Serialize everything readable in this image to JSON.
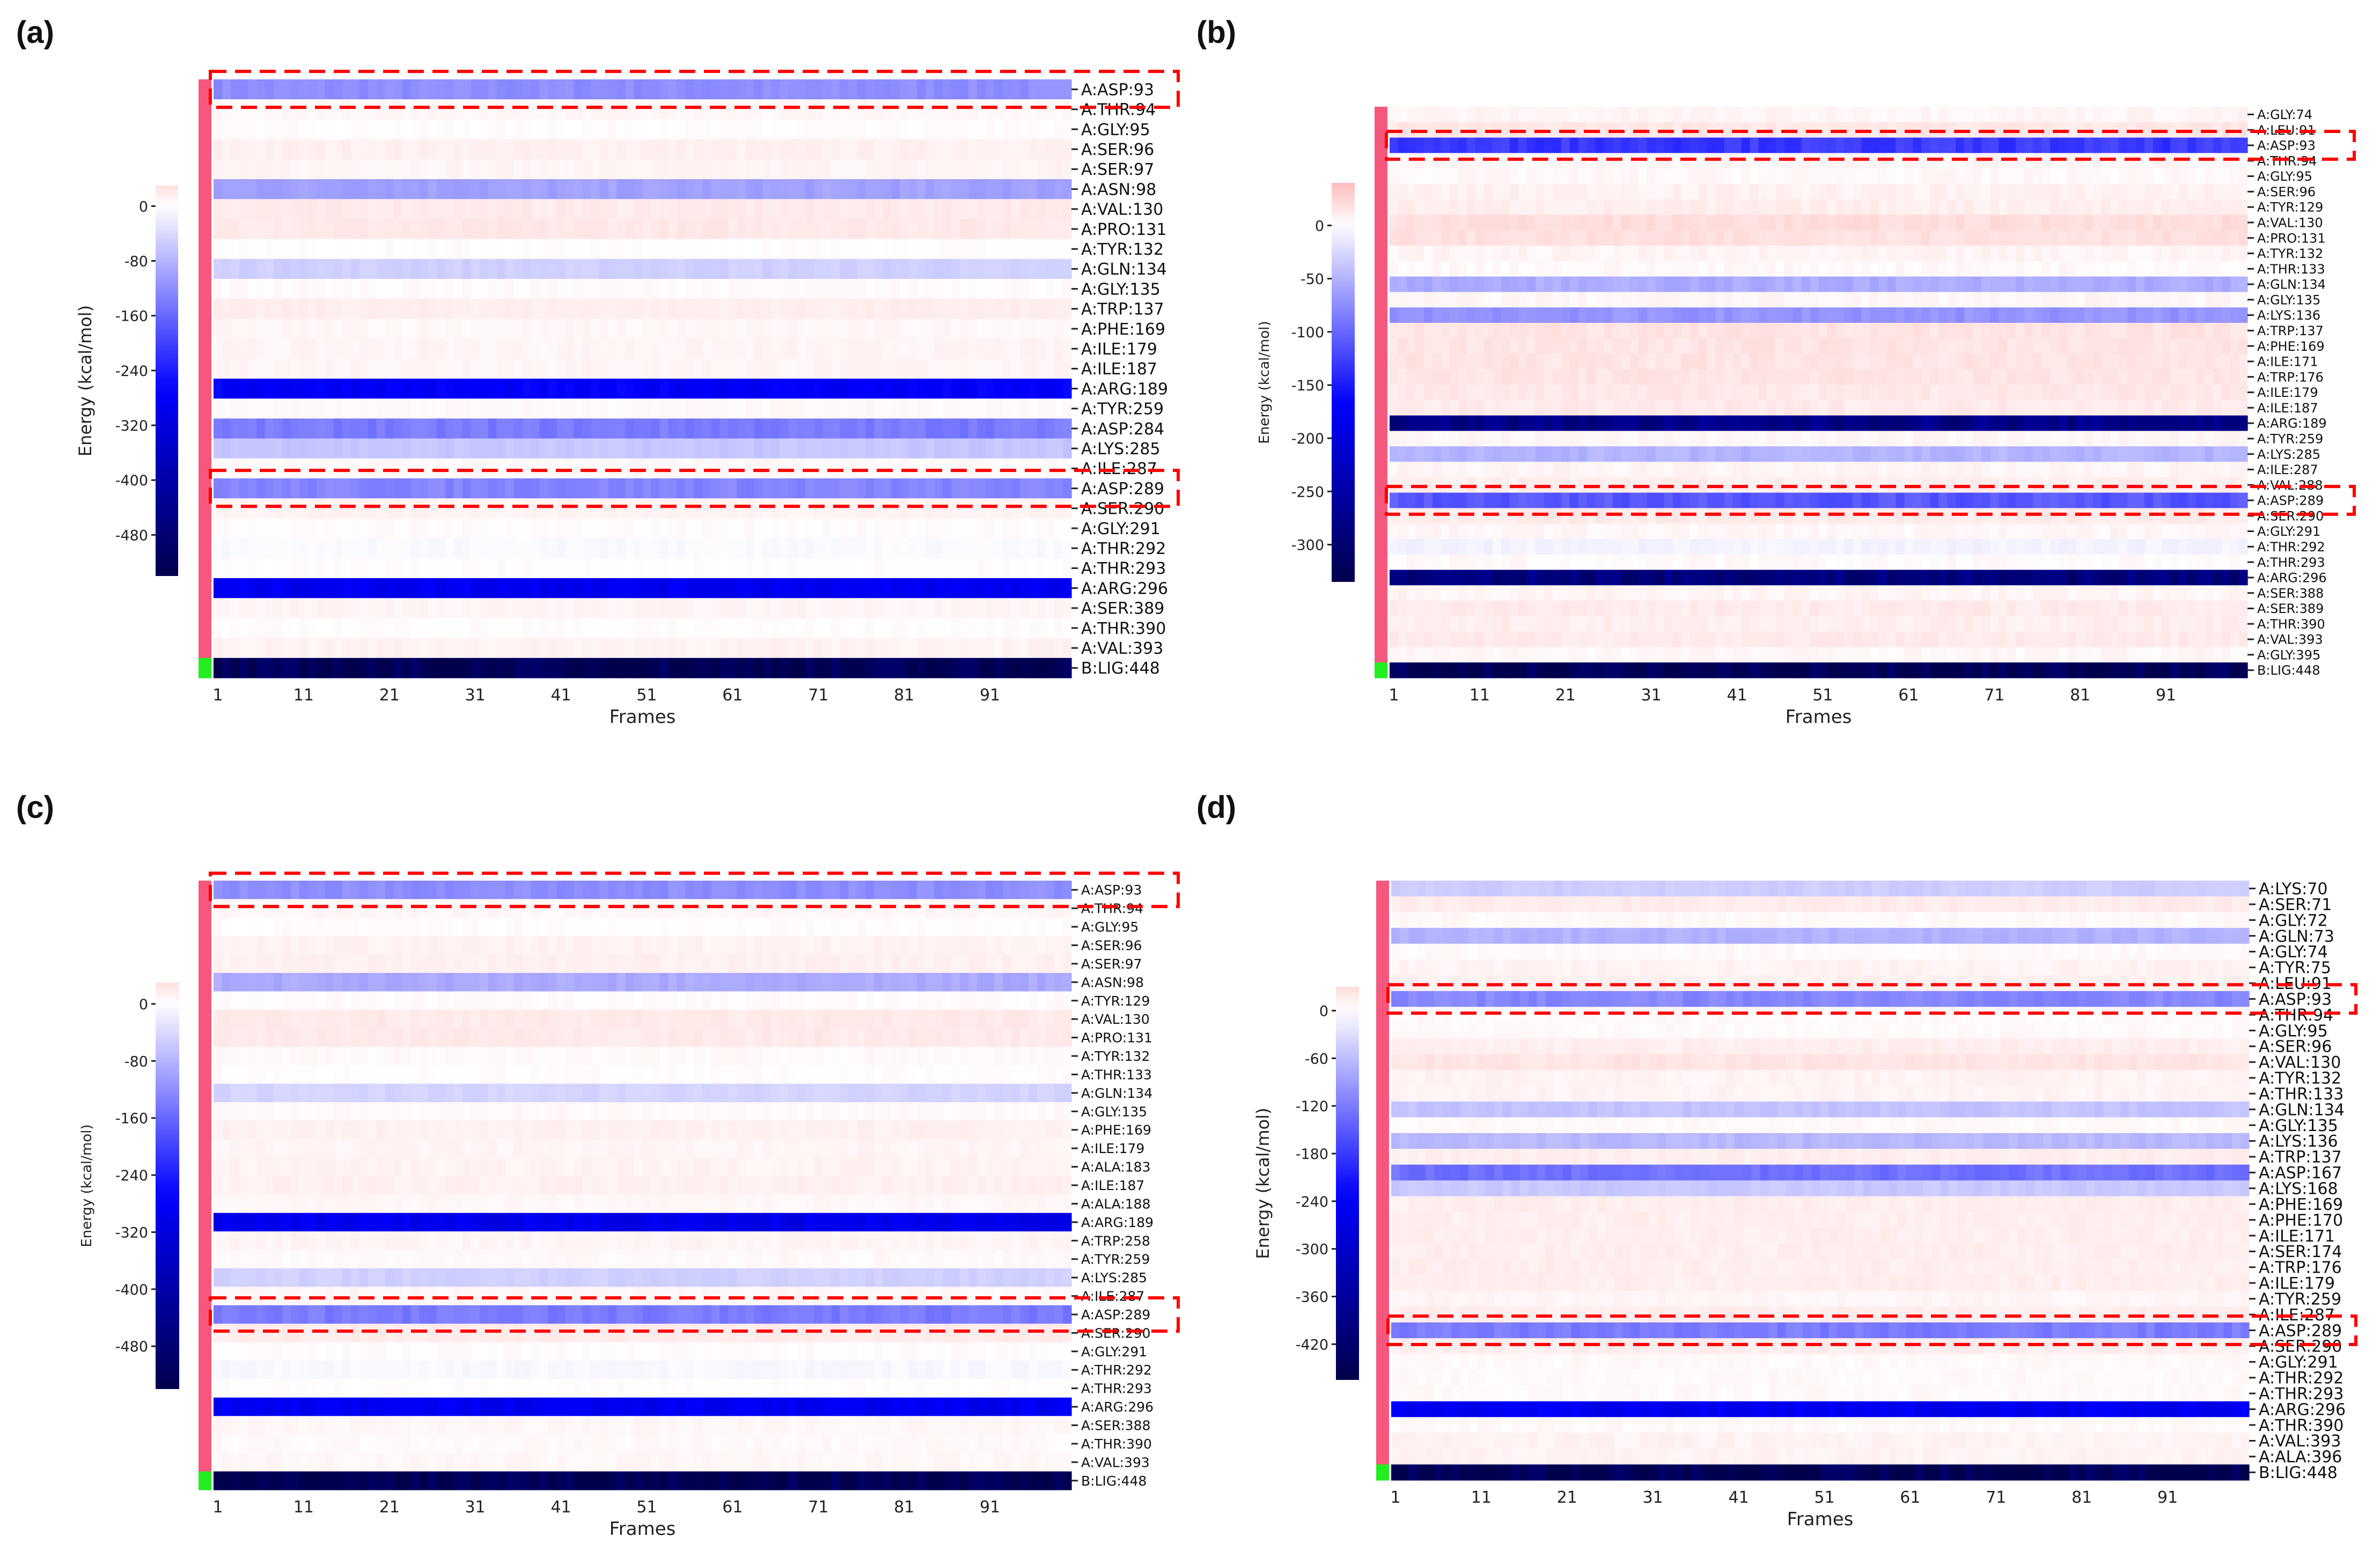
{
  "chart_data": [
    {
      "panel": "(a)",
      "type": "heatmap",
      "xlabel": "Frames",
      "ylabel": "Energy (kcal/mol)",
      "x_ticks": [
        "1",
        "11",
        "21",
        "31",
        "41",
        "51",
        "61",
        "71",
        "81",
        "91"
      ],
      "n_frames": 100,
      "colorbar": {
        "range": [
          -540,
          30
        ],
        "ticks": [
          0,
          -80,
          -160,
          -240,
          -320,
          -400,
          -480
        ]
      },
      "highlighted": [
        "A:ASP:93",
        "A:ASP:289"
      ],
      "residues": [
        "A:ASP:93",
        "A:THR:94",
        "A:GLY:95",
        "A:SER:96",
        "A:SER:97",
        "A:ASN:98",
        "A:VAL:130",
        "A:PRO:131",
        "A:TYR:132",
        "A:GLN:134",
        "A:GLY:135",
        "A:TRP:137",
        "A:PHE:169",
        "A:ILE:179",
        "A:ILE:187",
        "A:ARG:189",
        "A:TYR:259",
        "A:ASP:284",
        "A:LYS:285",
        "A:ILE:287",
        "A:ASP:289",
        "A:SER:290",
        "A:GLY:291",
        "A:THR:292",
        "A:THR:293",
        "A:ARG:296",
        "A:SER:389",
        "A:THR:390",
        "A:VAL:393",
        "B:LIG:448"
      ],
      "values": [
        -120,
        8,
        3,
        14,
        10,
        -100,
        20,
        22,
        2,
        -50,
        5,
        16,
        8,
        10,
        10,
        -280,
        6,
        -140,
        -60,
        6,
        -130,
        12,
        4,
        -6,
        2,
        -290,
        10,
        3,
        12,
        -525
      ]
    },
    {
      "panel": "(b)",
      "type": "heatmap",
      "xlabel": "Frames",
      "ylabel": "Energy (kcal/mol)",
      "x_ticks": [
        "1",
        "11",
        "21",
        "31",
        "41",
        "51",
        "61",
        "71",
        "81",
        "91"
      ],
      "n_frames": 100,
      "colorbar": {
        "range": [
          -335,
          40
        ],
        "ticks": [
          0,
          -50,
          -100,
          -150,
          -200,
          -250,
          -300
        ]
      },
      "highlighted": [
        "A:ASP:93",
        "A:ASP:289"
      ],
      "residues": [
        "A:GLY:74",
        "A:LEU:91",
        "A:ASP:93",
        "A:THR:94",
        "A:GLY:95",
        "A:SER:96",
        "A:TYR:129",
        "A:VAL:130",
        "A:PRO:131",
        "A:TYR:132",
        "A:THR:133",
        "A:GLN:134",
        "A:GLY:135",
        "A:LYS:136",
        "A:TRP:137",
        "A:PHE:169",
        "A:ILE:171",
        "A:TRP:176",
        "A:ILE:179",
        "A:ILE:187",
        "A:ARG:189",
        "A:TYR:259",
        "A:LYS:285",
        "A:ILE:287",
        "A:VAL:288",
        "A:ASP:289",
        "A:SER:290",
        "A:GLY:291",
        "A:THR:292",
        "A:THR:293",
        "A:ARG:296",
        "A:SER:388",
        "A:SER:389",
        "A:THR:390",
        "A:VAL:393",
        "A:GLY:395",
        "B:LIG:448"
      ],
      "values": [
        6,
        14,
        -130,
        5,
        4,
        8,
        10,
        20,
        18,
        6,
        4,
        -55,
        5,
        -70,
        16,
        16,
        16,
        16,
        14,
        12,
        -280,
        5,
        -50,
        6,
        10,
        -110,
        12,
        5,
        -8,
        3,
        -290,
        6,
        12,
        10,
        12,
        5,
        -325
      ]
    },
    {
      "panel": "(c)",
      "type": "heatmap",
      "xlabel": "Frames",
      "ylabel": "Energy (kcal/mol)",
      "x_ticks": [
        "1",
        "11",
        "21",
        "31",
        "41",
        "51",
        "61",
        "71",
        "81",
        "91"
      ],
      "n_frames": 100,
      "colorbar": {
        "range": [
          -540,
          30
        ],
        "ticks": [
          0,
          -80,
          -160,
          -240,
          -320,
          -400,
          -480
        ]
      },
      "highlighted": [
        "A:ASP:93",
        "A:ASP:289"
      ],
      "residues": [
        "A:ASP:93",
        "A:THR:94",
        "A:GLY:95",
        "A:SER:96",
        "A:SER:97",
        "A:ASN:98",
        "A:TYR:129",
        "A:VAL:130",
        "A:PRO:131",
        "A:TYR:132",
        "A:THR:133",
        "A:GLN:134",
        "A:GLY:135",
        "A:PHE:169",
        "A:ILE:179",
        "A:ALA:183",
        "A:ILE:187",
        "A:ALA:188",
        "A:ARG:189",
        "A:TRP:258",
        "A:TYR:259",
        "A:LYS:285",
        "A:ILE:287",
        "A:ASP:289",
        "A:SER:290",
        "A:GLY:291",
        "A:THR:292",
        "A:THR:293",
        "A:ARG:296",
        "A:SER:388",
        "A:THR:390",
        "A:VAL:393",
        "B:LIG:448"
      ],
      "values": [
        -120,
        8,
        3,
        12,
        14,
        -90,
        5,
        20,
        20,
        6,
        3,
        -45,
        6,
        14,
        10,
        12,
        14,
        8,
        -300,
        10,
        6,
        -50,
        8,
        -140,
        18,
        4,
        -8,
        2,
        -290,
        8,
        6,
        8,
        -530
      ]
    },
    {
      "panel": "(d)",
      "type": "heatmap",
      "xlabel": "Frames",
      "ylabel": "Energy (kcal/mol)",
      "x_ticks": [
        "1",
        "11",
        "21",
        "31",
        "41",
        "51",
        "61",
        "71",
        "81",
        "91"
      ],
      "n_frames": 100,
      "colorbar": {
        "range": [
          -465,
          30
        ],
        "ticks": [
          0,
          -60,
          -120,
          -180,
          -240,
          -300,
          -360,
          -420
        ]
      },
      "highlighted": [
        "A:ASP:93",
        "A:ASP:289"
      ],
      "residues": [
        "A:LYS:70",
        "A:SER:71",
        "A:GLY:72",
        "A:GLN:73",
        "A:GLY:74",
        "A:TYR:75",
        "A:LEU:91",
        "A:ASP:93",
        "A:THR:94",
        "A:GLY:95",
        "A:SER:96",
        "A:VAL:130",
        "A:TYR:132",
        "A:THR:133",
        "A:GLN:134",
        "A:GLY:135",
        "A:LYS:136",
        "A:TRP:137",
        "A:ASP:167",
        "A:LYS:168",
        "A:PHE:169",
        "A:PHE:170",
        "A:ILE:171",
        "A:SER:174",
        "A:TRP:176",
        "A:ILE:179",
        "A:TYR:259",
        "A:ILE:287",
        "A:ASP:289",
        "A:SER:290",
        "A:GLY:291",
        "A:THR:292",
        "A:THR:293",
        "A:ARG:296",
        "A:THR:390",
        "A:VAL:393",
        "A:ALA:396",
        "B:LIG:448"
      ],
      "values": [
        -45,
        16,
        5,
        -70,
        5,
        10,
        12,
        -110,
        5,
        5,
        14,
        22,
        10,
        10,
        -55,
        5,
        -65,
        14,
        -130,
        -50,
        14,
        14,
        14,
        14,
        14,
        14,
        8,
        14,
        -120,
        14,
        5,
        5,
        5,
        -250,
        5,
        10,
        10,
        -450
      ]
    }
  ],
  "colors": {
    "negative_end": "#00004c",
    "mid_negative": "#0000ff",
    "center": "#ffffff",
    "positive": "#ff0000",
    "residue_bar": "#f5587c",
    "ligand_bar": "#22ee22",
    "highlight_box": "#ff0000"
  }
}
